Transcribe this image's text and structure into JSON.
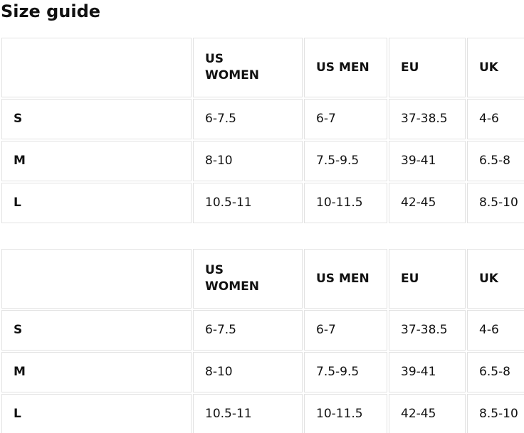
{
  "page": {
    "heading": "Size guide"
  },
  "colors": {
    "text": "#111111",
    "border": "#e2e2e2",
    "background": "#ffffff"
  },
  "tables": [
    {
      "columns": [
        "",
        "US WOMEN",
        "US MEN",
        "EU",
        "UK"
      ],
      "rows": [
        {
          "label": "S",
          "values": [
            "6-7.5",
            "6-7",
            "37-38.5",
            "4-6"
          ]
        },
        {
          "label": "M",
          "values": [
            "8-10",
            "7.5-9.5",
            "39-41",
            "6.5-8"
          ]
        },
        {
          "label": "L",
          "values": [
            "10.5-11",
            "10-11.5",
            "42-45",
            "8.5-10"
          ]
        }
      ]
    },
    {
      "columns": [
        "",
        "US WOMEN",
        "US MEN",
        "EU",
        "UK"
      ],
      "rows": [
        {
          "label": "S",
          "values": [
            "6-7.5",
            "6-7",
            "37-38.5",
            "4-6"
          ]
        },
        {
          "label": "M",
          "values": [
            "8-10",
            "7.5-9.5",
            "39-41",
            "6.5-8"
          ]
        },
        {
          "label": "L",
          "values": [
            "10.5-11",
            "10-11.5",
            "42-45",
            "8.5-10"
          ]
        }
      ]
    }
  ]
}
